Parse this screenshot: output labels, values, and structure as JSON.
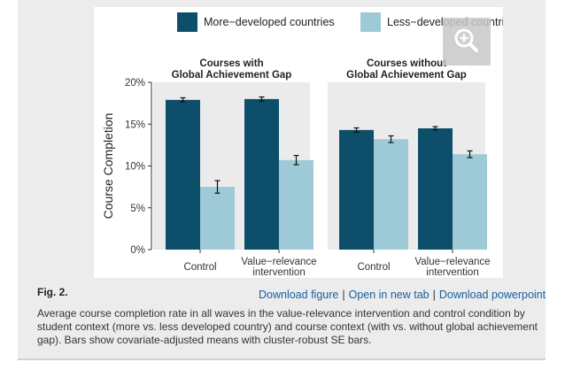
{
  "figure_label": "Fig. 2.",
  "links": {
    "download_figure": "Download figure",
    "open_new_tab": "Open in new tab",
    "download_powerpoint": "Download powerpoint",
    "separator": "|"
  },
  "caption": "Average course completion rate in all waves in the value-relevance intervention and control condition by student context (more vs. less developed country) and course context (with vs. without global achievement gap). Bars show covariate-adjusted means with cluster-robust SE bars.",
  "colors": {
    "more_developed": "#0d4f6b",
    "less_developed": "#9ec9d6",
    "plot_background": "#ebebeb",
    "panel_background": "#ececec",
    "link": "#1a5fa0"
  },
  "zoom_icon": "zoom-in-icon",
  "chart_data": {
    "type": "bar",
    "ylabel": "Course Completion",
    "ylim": [
      0,
      20
    ],
    "yticks": [
      "0%",
      "5%",
      "10%",
      "15%",
      "20%"
    ],
    "ytick_values": [
      0,
      5,
      10,
      15,
      20
    ],
    "grid": false,
    "legend_position": "top",
    "series": [
      {
        "name": "More−developed countries",
        "color": "#0d4f6b"
      },
      {
        "name": "Less−developed countries",
        "color": "#9ec9d6"
      }
    ],
    "panels": [
      {
        "title": [
          "Courses with",
          "Global Achievement Gap"
        ],
        "categories": [
          [
            "Control"
          ],
          [
            "Value−relevance",
            "intervention"
          ]
        ],
        "values": [
          [
            17.9,
            7.5
          ],
          [
            18.0,
            10.7
          ]
        ],
        "errors": [
          [
            0.25,
            0.75
          ],
          [
            0.25,
            0.55
          ]
        ]
      },
      {
        "title": [
          "Courses without",
          "Global Achievement Gap"
        ],
        "categories": [
          [
            "Control"
          ],
          [
            "Value−relevance",
            "intervention"
          ]
        ],
        "values": [
          [
            14.3,
            13.2
          ],
          [
            14.5,
            11.4
          ]
        ],
        "errors": [
          [
            0.25,
            0.4
          ],
          [
            0.2,
            0.4
          ]
        ]
      }
    ]
  }
}
